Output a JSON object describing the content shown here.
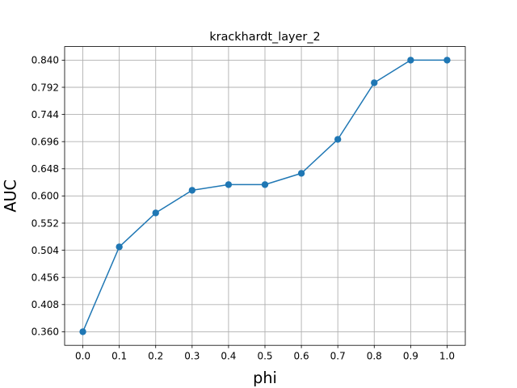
{
  "chart_data": {
    "type": "line",
    "title": "krackhardt_layer_2",
    "xlabel": "phi",
    "ylabel": "AUC",
    "x": [
      0.0,
      0.1,
      0.2,
      0.3,
      0.4,
      0.5,
      0.6,
      0.7,
      0.8,
      0.9,
      1.0
    ],
    "series": [
      {
        "values": [
          0.36,
          0.51,
          0.57,
          0.61,
          0.62,
          0.62,
          0.64,
          0.7,
          0.8,
          0.84,
          0.84
        ],
        "color": "#1f77b4",
        "marker": "circle"
      }
    ],
    "xlim": [
      -0.05,
      1.05
    ],
    "ylim": [
      0.336,
      0.864
    ],
    "xticks": [
      "0.0",
      "0.1",
      "0.2",
      "0.3",
      "0.4",
      "0.5",
      "0.6",
      "0.7",
      "0.8",
      "0.9",
      "1.0"
    ],
    "xtick_values": [
      0.0,
      0.1,
      0.2,
      0.3,
      0.4,
      0.5,
      0.6,
      0.7,
      0.8,
      0.9,
      1.0
    ],
    "yticks": [
      "0.360",
      "0.408",
      "0.456",
      "0.504",
      "0.552",
      "0.600",
      "0.648",
      "0.696",
      "0.744",
      "0.792",
      "0.840"
    ],
    "ytick_values": [
      0.36,
      0.408,
      0.456,
      0.504,
      0.552,
      0.6,
      0.648,
      0.696,
      0.744,
      0.792,
      0.84
    ],
    "grid": true,
    "legend": "none"
  }
}
